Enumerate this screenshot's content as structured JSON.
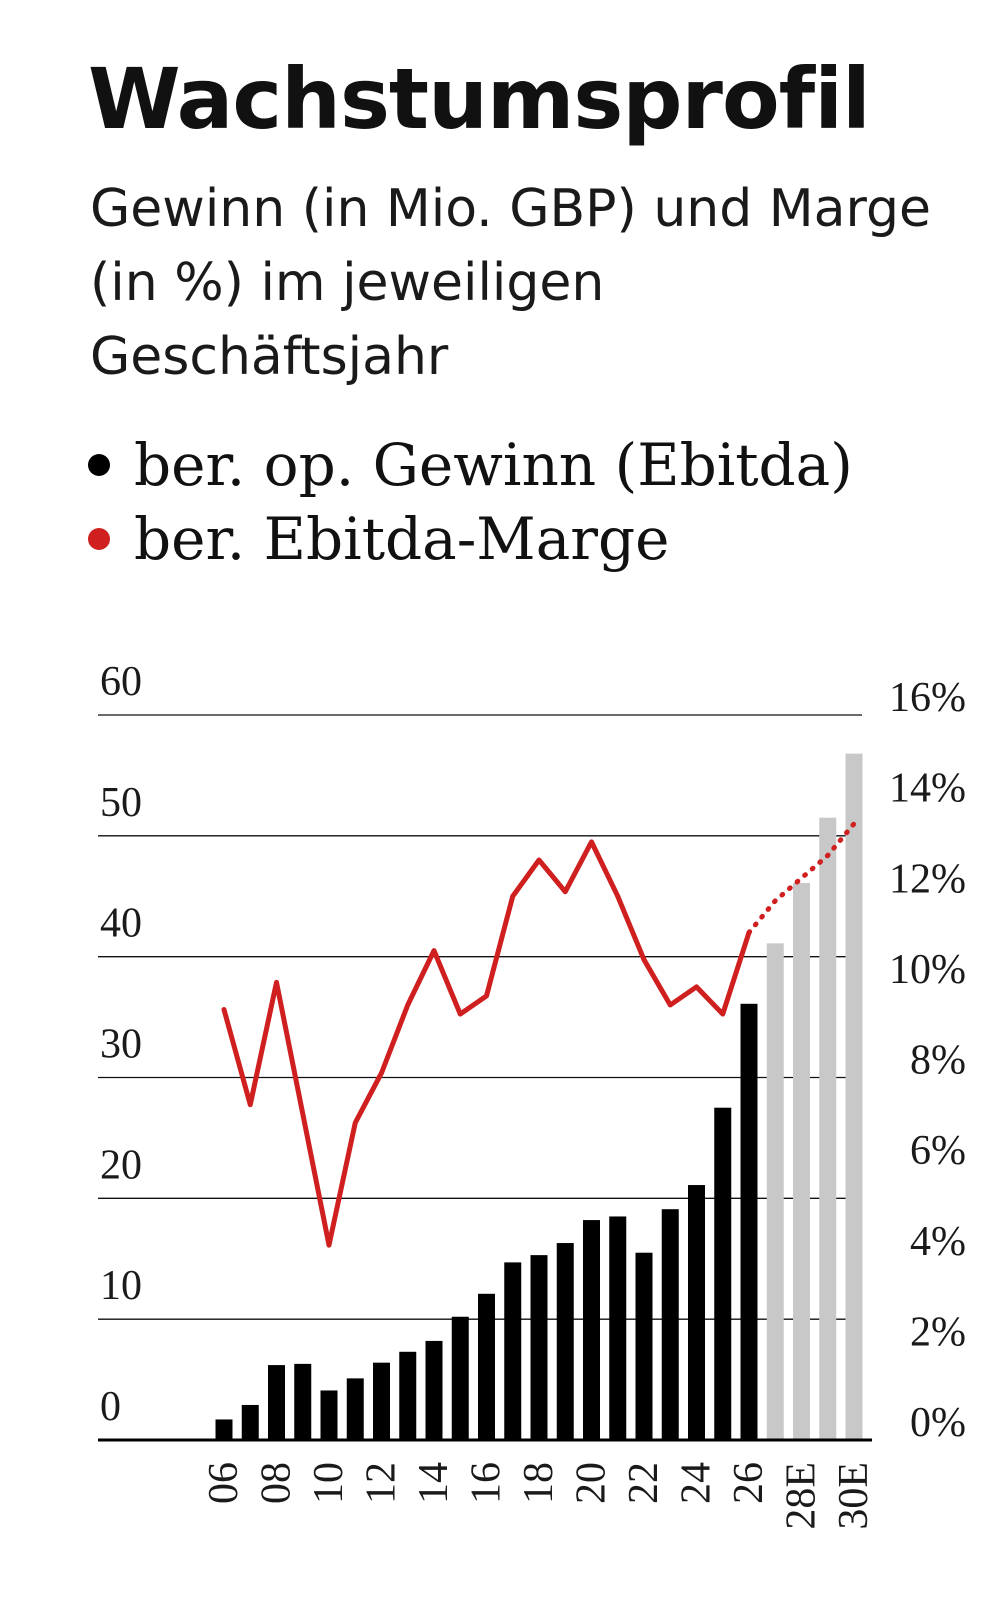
{
  "title": "Wachstumsprofil",
  "subtitle": "Gewinn (in Mio. GBP) und Marge (in %) im jeweiligen Geschäftsjahr",
  "legend": [
    {
      "label": "ber. op. Gewinn (Ebitda)",
      "color": "#000000"
    },
    {
      "label": "ber. Ebitda-Marge",
      "color": "#d01f1f"
    }
  ],
  "chart_data": {
    "type": "bar",
    "categories": [
      "06",
      "07",
      "08",
      "09",
      "10",
      "11",
      "12",
      "13",
      "14",
      "15",
      "16",
      "17",
      "18",
      "19",
      "20",
      "21",
      "22",
      "23",
      "24",
      "25",
      "26",
      "27E",
      "28E",
      "29E",
      "30E"
    ],
    "tick_labels": [
      "06",
      "08",
      "10",
      "12",
      "14",
      "16",
      "18",
      "20",
      "22",
      "24",
      "26",
      "28E",
      "30E"
    ],
    "estimated_from": "27E",
    "series": [
      {
        "name": "ber. op. Gewinn (Ebitda)",
        "type": "bar",
        "axis": "left",
        "values": [
          1.7,
          2.9,
          6.2,
          6.3,
          4.1,
          5.1,
          6.4,
          7.3,
          8.2,
          10.2,
          12.1,
          14.7,
          15.3,
          16.3,
          18.2,
          18.5,
          15.5,
          19.1,
          21.1,
          27.5,
          36.1,
          41.1,
          46.1,
          51.5,
          56.8
        ],
        "colors": {
          "actual": "#000000",
          "estimate": "#c8c8c8"
        }
      },
      {
        "name": "ber. Ebitda-Marge",
        "type": "line",
        "axis": "right",
        "values": [
          9.5,
          7.4,
          10.1,
          7.2,
          4.3,
          7.0,
          8.1,
          9.6,
          10.8,
          9.4,
          9.8,
          12.0,
          12.8,
          12.1,
          13.2,
          12.0,
          10.6,
          9.6,
          10.0,
          9.4,
          11.2,
          11.9,
          12.4,
          12.9,
          13.6
        ],
        "color": "#d01f1f"
      }
    ],
    "y_left": {
      "ticks": [
        "0",
        "10",
        "20",
        "30",
        "40",
        "50",
        "60"
      ],
      "ylim": [
        0,
        60
      ]
    },
    "y_right": {
      "ticks": [
        "0%",
        "2%",
        "4%",
        "6%",
        "8%",
        "10%",
        "12%",
        "14%",
        "16%"
      ],
      "ylim": [
        0,
        16
      ]
    },
    "grid": true
  }
}
